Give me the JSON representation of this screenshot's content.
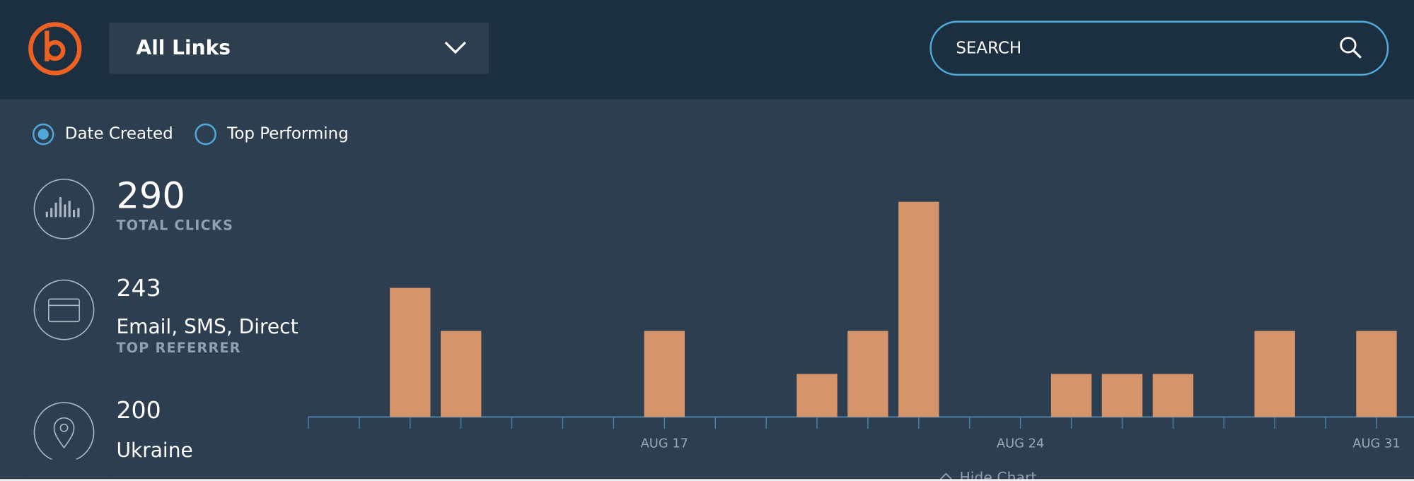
{
  "header": {
    "dropdown": "All Links",
    "search_placeholder": "SEARCH"
  },
  "filters": [
    "Date Created",
    "Top Performing"
  ],
  "stats": [
    {
      "value": 290,
      "label": "TOTAL CLICKS"
    },
    {
      "value": 243,
      "name": "Email, SMS, Direct",
      "label": "TOP REFERRER"
    },
    {
      "value": 200,
      "name": "Ukraine"
    }
  ],
  "chart_toggle": "Hide Chart",
  "chart_data": {
    "type": "bar",
    "categories": [
      null,
      null,
      null,
      null,
      null,
      null,
      null,
      "AUG 17",
      null,
      null,
      null,
      null,
      null,
      null,
      "AUG 24",
      null,
      null,
      null,
      null,
      null,
      null,
      "AUG 31"
    ],
    "values": [
      0,
      0,
      3,
      2,
      0,
      0,
      0,
      2,
      0,
      0,
      1,
      2,
      5,
      0,
      0,
      1,
      1,
      1,
      0,
      2,
      0,
      2
    ],
    "color": "#d5946a",
    "ylim": [
      0,
      5
    ]
  }
}
